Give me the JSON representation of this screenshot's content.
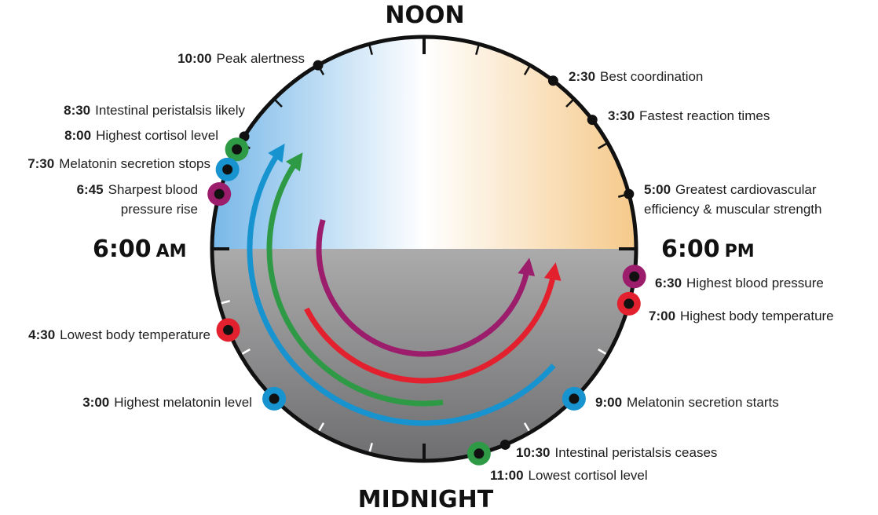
{
  "labels": {
    "noon": "NOON",
    "midnight": "MIDNIGHT",
    "am_time": "6:00",
    "am_suffix": "AM",
    "pm_time": "6:00",
    "pm_suffix": "PM"
  },
  "events": [
    {
      "id": "peak-alertness",
      "time": "10:00",
      "text": [
        "Peak alertness"
      ],
      "ring": null
    },
    {
      "id": "best-coordination",
      "time": "2:30",
      "text": [
        "Best coordination"
      ],
      "ring": null
    },
    {
      "id": "intestinal-peristalsis-likely",
      "time": "8:30",
      "text": [
        "Intestinal peristalsis likely"
      ],
      "ring": null
    },
    {
      "id": "fastest-reaction-times",
      "time": "3:30",
      "text": [
        "Fastest reaction times"
      ],
      "ring": null
    },
    {
      "id": "highest-cortisol-level",
      "time": "8:00",
      "text": [
        "Highest cortisol level"
      ],
      "ring": "green"
    },
    {
      "id": "melatonin-secretion-stops",
      "time": "7:30",
      "text": [
        "Melatonin secretion stops"
      ],
      "ring": "blue"
    },
    {
      "id": "sharpest-blood-pressure-rise",
      "time": "6:45",
      "text": [
        "Sharpest blood",
        "pressure rise"
      ],
      "ring": "purple"
    },
    {
      "id": "greatest-cardiovascular-efficiency",
      "time": "5:00",
      "text": [
        "Greatest cardiovascular",
        "efficiency & muscular strength"
      ],
      "ring": null
    },
    {
      "id": "highest-blood-pressure",
      "time": "6:30",
      "text": [
        "Highest blood pressure"
      ],
      "ring": "purple"
    },
    {
      "id": "highest-body-temperature",
      "time": "7:00",
      "text": [
        "Highest body temperature"
      ],
      "ring": "red"
    },
    {
      "id": "lowest-body-temperature",
      "time": "4:30",
      "text": [
        "Lowest body temperature"
      ],
      "ring": "red"
    },
    {
      "id": "highest-melatonin-level",
      "time": "3:00",
      "text": [
        "Highest melatonin level"
      ],
      "ring": "blue"
    },
    {
      "id": "melatonin-secretion-starts",
      "time": "9:00",
      "text": [
        "Melatonin secretion starts"
      ],
      "ring": "blue"
    },
    {
      "id": "intestinal-peristalsis-ceases",
      "time": "10:30",
      "text": [
        "Intestinal peristalsis ceases"
      ],
      "ring": null
    },
    {
      "id": "lowest-cortisol-level",
      "time": "11:00",
      "text": [
        "Lowest cortisol level"
      ],
      "ring": "green"
    }
  ],
  "colors": {
    "red": "#e3202e",
    "purple": "#9b1d6c",
    "green": "#2e9a46",
    "blue": "#1793cf",
    "day_left": "#78b8e8",
    "day_right": "#f5c98a",
    "night_dark": "#6e6e70",
    "night_light": "#e8e8e8",
    "outline": "#111111"
  }
}
